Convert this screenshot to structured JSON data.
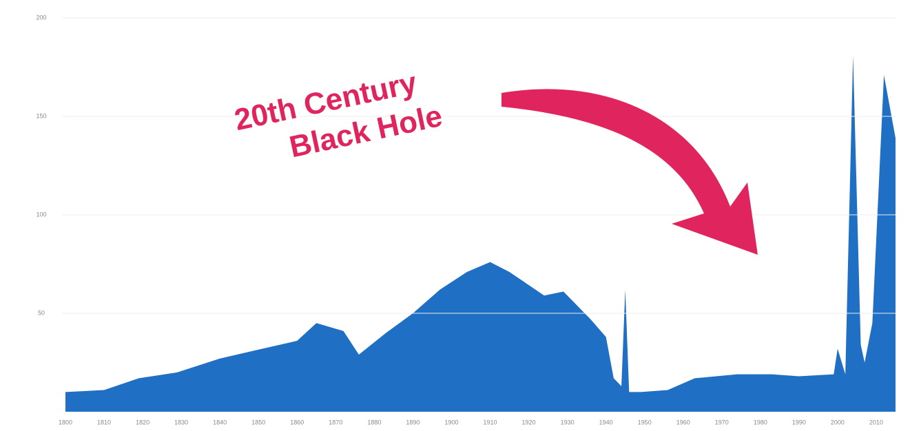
{
  "chart_data": {
    "type": "area",
    "annotation": [
      "20th Century",
      "Black Hole"
    ],
    "x": [
      1800,
      1810,
      1819,
      1829,
      1840,
      1851,
      1860,
      1865,
      1872,
      1876,
      1883,
      1890,
      1897,
      1904,
      1910,
      1915,
      1924,
      1929,
      1936,
      1940,
      1942,
      1944,
      1945,
      1946,
      1949,
      1956,
      1963,
      1974,
      1983,
      1990,
      1999,
      2000,
      2002,
      2004,
      2006,
      2007,
      2009,
      2012,
      2015
    ],
    "values": [
      10,
      11,
      17,
      20,
      27,
      32,
      36,
      45,
      41,
      29,
      40,
      50,
      62,
      71,
      76,
      71,
      59,
      61,
      47,
      38,
      17,
      13,
      62,
      10,
      10,
      11,
      17,
      19,
      19,
      18,
      19,
      32,
      19,
      181,
      34,
      25,
      45,
      171,
      139
    ],
    "color": "#1f6fc5",
    "annotation_color": "#e0245e",
    "xlim": [
      1800,
      2015
    ],
    "xticks": [
      1800,
      1810,
      1820,
      1830,
      1840,
      1850,
      1860,
      1870,
      1880,
      1890,
      1900,
      1910,
      1920,
      1930,
      1940,
      1950,
      1960,
      1970,
      1980,
      1990,
      2000,
      2010
    ],
    "ylim": [
      0,
      200
    ],
    "yticks": [
      50,
      100,
      150,
      200
    ],
    "grid": true
  }
}
